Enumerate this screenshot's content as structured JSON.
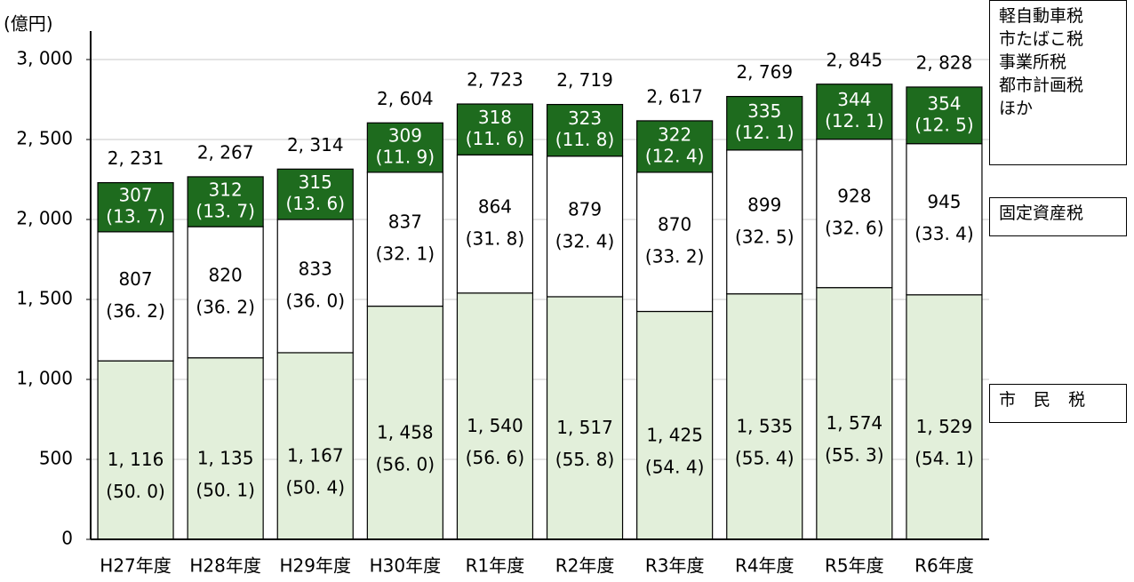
{
  "chart_data": {
    "type": "stacked_bar",
    "ylabel": "(億円)",
    "categories": [
      "H27年度",
      "H28年度",
      "H29年度",
      "H30年度",
      "R1年度",
      "R2年度",
      "R3年度",
      "R4年度",
      "R5年度",
      "R6年度"
    ],
    "series": [
      {
        "name": "市 民 税",
        "color": "#e2efda",
        "text_color": "#000000",
        "values": [
          1116,
          1135,
          1167,
          1458,
          1540,
          1517,
          1425,
          1535,
          1574,
          1529
        ],
        "value_labels": [
          "1, 116",
          "1, 135",
          "1, 167",
          "1, 458",
          "1, 540",
          "1, 517",
          "1, 425",
          "1, 535",
          "1, 574",
          "1, 529"
        ],
        "share_labels": [
          "(50. 0)",
          "(50. 1)",
          "(50. 4)",
          "(56. 0)",
          "(56. 6)",
          "(55. 8)",
          "(54. 4)",
          "(55. 4)",
          "(55. 3)",
          "(54. 1)"
        ]
      },
      {
        "name": "固定資産税",
        "color": "#ffffff",
        "text_color": "#000000",
        "values": [
          807,
          820,
          833,
          837,
          864,
          879,
          870,
          899,
          928,
          945
        ],
        "share_labels": [
          "(36. 2)",
          "(36. 2)",
          "(36. 0)",
          "(32. 1)",
          "(31. 8)",
          "(32. 4)",
          "(33. 2)",
          "(32. 5)",
          "(32. 6)",
          "(33. 4)"
        ]
      },
      {
        "name": "軽自動車税\n市たばこ税\n事業所税\n都市計画税\nほか",
        "color": "#1e6b1e",
        "text_color": "#ffffff",
        "values": [
          307,
          312,
          315,
          309,
          318,
          323,
          322,
          335,
          344,
          354
        ],
        "share_labels": [
          "(13. 7)",
          "(13. 7)",
          "(13. 6)",
          "(11. 9)",
          "(11. 6)",
          "(11. 8)",
          "(12. 4)",
          "(12. 1)",
          "(12. 1)",
          "(12. 5)"
        ]
      }
    ],
    "totals": [
      2231,
      2267,
      2314,
      2604,
      2723,
      2719,
      2617,
      2769,
      2845,
      2828
    ],
    "total_labels": [
      "2, 231",
      "2, 267",
      "2, 314",
      "2, 604",
      "2, 723",
      "2, 719",
      "2, 617",
      "2, 769",
      "2, 845",
      "2, 828"
    ],
    "ylim": [
      0,
      3000
    ],
    "yticks": [
      0,
      500,
      {
        "value": 1000,
        "label": "1, 000"
      },
      {
        "value": 1500,
        "label": "1, 500"
      },
      {
        "value": 2000,
        "label": "2, 000"
      },
      {
        "value": 2500,
        "label": "2, 500"
      },
      {
        "value": 3000,
        "label": "3, 000"
      }
    ],
    "grid": true
  }
}
